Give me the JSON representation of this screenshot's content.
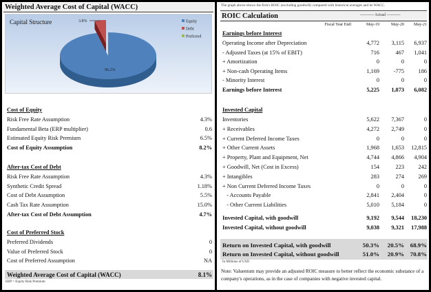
{
  "wacc": {
    "title": "Weighted Average Cost of Capital (WACC)",
    "chart_data": {
      "type": "pie",
      "title": "Capital Structure",
      "slices": [
        {
          "name": "Equity",
          "value": 96.2,
          "label": "96.2%",
          "color": "#4f81bd"
        },
        {
          "name": "Debt",
          "value": 3.8,
          "label": "3.8%",
          "color": "#c0504d"
        },
        {
          "name": "Preferred",
          "value": 0,
          "label": "",
          "color": "#9bbb59"
        }
      ]
    },
    "sections": [
      {
        "header": "Cost of Equity",
        "rows": [
          [
            "Risk Free Rate Assumption",
            "4.3%",
            false
          ],
          [
            "Fundamental Beta (ERP multiplier)",
            "0.6",
            false
          ],
          [
            "Estimated Equity Risk Premium",
            "6.5%",
            false
          ],
          [
            "Cost of Equity Assumption",
            "8.2%",
            true
          ]
        ]
      },
      {
        "header": "After-tax Cost of Debt",
        "rows": [
          [
            "Risk Free Rate Assumption",
            "4.3%",
            false
          ],
          [
            "Synthetic Credit Spread",
            "1.18%",
            false
          ],
          [
            "Cost of Debt Assumption",
            "5.5%",
            false
          ],
          [
            "Cash Tax Rate Assumption",
            "15.0%",
            false
          ],
          [
            "After-tax Cost of Debt Assumption",
            "4.7%",
            true
          ]
        ]
      },
      {
        "header": "Cost of Preferred Stock",
        "rows": [
          [
            "Preferred Dividends",
            "0",
            false
          ],
          [
            "Value of Preferred Stock",
            "0",
            false
          ],
          [
            "Cost of Preferred Assumption",
            "NA",
            false
          ]
        ]
      }
    ],
    "total": {
      "label": "Weighted Average Cost of Capital (WACC)",
      "value": "8.1%"
    },
    "footnote": "ERP = Equity Risk Premium"
  },
  "roic": {
    "intro": "The graph above shows the firm's ROIC (excluding goodwill) compared with historical averages and its WACC.",
    "title": "ROIC Calculation",
    "actual_label": "---------- Actual ----------",
    "fy_label": "Fiscal Year End:",
    "years": [
      "May-19",
      "May-20",
      "May-21"
    ],
    "ebi_header": "Earnings before Interest",
    "ebi_rows": [
      [
        "Operating Income after Depreciation",
        "4,772",
        "3,115",
        "6,937",
        false
      ],
      [
        "- Adjusted Taxes (at 15% of EBIT)",
        "716",
        "467",
        "1,041",
        false
      ],
      [
        "+ Amortization",
        "0",
        "0",
        "0",
        false
      ],
      [
        "+ Non-cash Operating Items",
        "1,169",
        "-775",
        "186",
        false
      ],
      [
        "- Minority Interest",
        "0",
        "0",
        "0",
        false
      ],
      [
        "Earnings before Interest",
        "5,225",
        "1,873",
        "6,082",
        true
      ]
    ],
    "ic_header": "Invested Capital",
    "ic_rows": [
      [
        "Inventories",
        "5,622",
        "7,367",
        "0",
        false
      ],
      [
        "+ Receivables",
        "4,272",
        "2,749",
        "0",
        false
      ],
      [
        "+ Current Deferred Income Taxes",
        "0",
        "0",
        "0",
        false
      ],
      [
        "+ Other Current Assets",
        "1,968",
        "1,653",
        "12,815",
        false
      ],
      [
        "+ Property, Plant and Equipment, Net",
        "4,744",
        "4,866",
        "4,904",
        false
      ],
      [
        "+ Goodwill, Net (Cost in Excess)",
        "154",
        "223",
        "242",
        false
      ],
      [
        "+ Intangibles",
        "283",
        "274",
        "269",
        false
      ],
      [
        "+ Non Current Deferred Income Taxes",
        "0",
        "0",
        "0",
        false
      ],
      [
        "   - Accounts Payable",
        "2,841",
        "2,404",
        "0",
        false
      ],
      [
        "   - Other Current Liabilities",
        "5,010",
        "5,184",
        "0",
        false
      ]
    ],
    "ic_totals": [
      [
        "Invested Capital, with goodwill",
        "9,192",
        "9,544",
        "18,230",
        true
      ],
      [
        "Invested Capital, without goodwill",
        "9,038",
        "9,321",
        "17,988",
        true
      ]
    ],
    "roic_rows": [
      [
        "Return on Invested Capital, with goodwill",
        "50.3%",
        "20.5%",
        "68.9%",
        true
      ],
      [
        "Return on Invested Capital, without goodwill",
        "51.0%",
        "20.9%",
        "70.8%",
        true
      ]
    ],
    "units": "In Millions of USD",
    "note": "Note: Valuentum may provide an adjusted ROIC measure to better reflect the economic substance of a company's operations, as in the case of companies with negative invested capital."
  }
}
